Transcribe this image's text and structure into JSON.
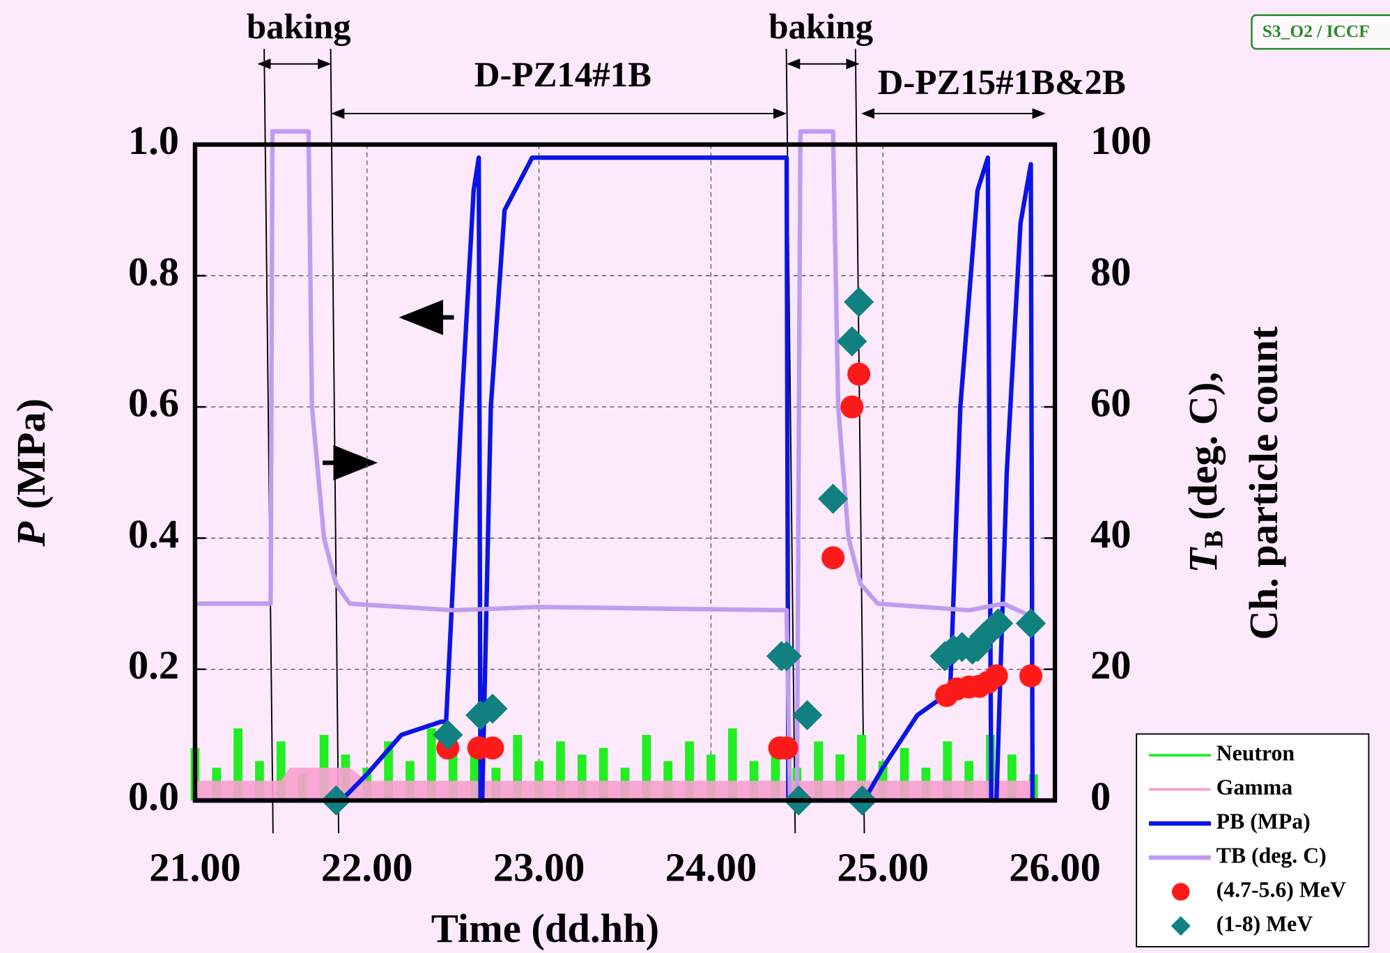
{
  "chart_data": {
    "type": "line",
    "badge": "S3_O2 / ICCF",
    "annotations": [
      "baking",
      "baking",
      "D-PZ14#1B",
      "D-PZ15#1B&2B"
    ],
    "xlabel": "Time  (dd.hh)",
    "ylabel_symbol": "P",
    "ylabel_unit": "(MPa)",
    "y2label_symbol": "T",
    "y2label_subscript": "B",
    "y2label_unit": " (deg. C),",
    "y2label_line2": "Ch. particle count",
    "xlim": [
      21,
      26
    ],
    "xticks": [
      {
        "value": 21,
        "label": "21.00"
      },
      {
        "value": 22,
        "label": "22.00"
      },
      {
        "value": 23,
        "label": "23.00"
      },
      {
        "value": 24,
        "label": "24.00"
      },
      {
        "value": 25,
        "label": "25.00"
      },
      {
        "value": 26,
        "label": "26.00"
      }
    ],
    "ylim": [
      0,
      1
    ],
    "yticks": [
      {
        "value": 0,
        "label": "0.0"
      },
      0.2,
      0.4,
      0.6,
      0.8,
      {
        "value": 1,
        "label": "1.0"
      }
    ],
    "y2lim": [
      0,
      100
    ],
    "y2ticks": [
      0,
      20,
      40,
      60,
      80,
      100
    ],
    "grid": true,
    "legend": "lower right outside",
    "series": [
      {
        "name": "Neutron",
        "kind": "spike",
        "color": "#22ee22",
        "axis": "y2",
        "x": [
          21.0,
          21.125,
          21.25,
          21.375,
          21.5,
          21.625,
          21.75,
          21.875,
          22.0,
          22.125,
          22.25,
          22.375,
          22.5,
          22.625,
          22.75,
          22.875,
          23.0,
          23.125,
          23.25,
          23.375,
          23.5,
          23.625,
          23.75,
          23.875,
          24.0,
          24.125,
          24.25,
          24.375,
          24.5,
          24.625,
          24.75,
          24.875,
          25.0,
          25.125,
          25.25,
          25.375,
          25.5,
          25.625,
          25.75,
          25.875
        ],
        "values": [
          8,
          5,
          11,
          6,
          9,
          4,
          10,
          7,
          5,
          9,
          6,
          11,
          7,
          8,
          5,
          10,
          6,
          9,
          7,
          8,
          5,
          10,
          6,
          9,
          7,
          11,
          6,
          8,
          5,
          9,
          7,
          10,
          6,
          8,
          5,
          9,
          6,
          10,
          7,
          4
        ]
      },
      {
        "name": "Gamma",
        "kind": "area",
        "color": "#f8a0d0",
        "axis": "y2",
        "x": [
          21.0,
          21.5,
          21.55,
          21.9,
          22.0,
          22.7,
          22.75,
          24.5,
          25.0,
          25.5,
          25.87
        ],
        "values": [
          3,
          3,
          5,
          5,
          3,
          3,
          3,
          3,
          3,
          3,
          3
        ]
      },
      {
        "name": "PB (MPa)",
        "kind": "line",
        "color": "#0a14e6",
        "axis": "y",
        "x": [
          21.0,
          21.85,
          22.0,
          22.2,
          22.43,
          22.46,
          22.55,
          22.62,
          22.65,
          22.66,
          22.67,
          22.72,
          22.8,
          22.96,
          24.44,
          24.45,
          24.5,
          24.89,
          25.0,
          25.2,
          25.36,
          25.39,
          25.45,
          25.55,
          25.61,
          25.63,
          25.66,
          25.72,
          25.8,
          25.86,
          25.87
        ],
        "values": [
          0,
          0,
          0.04,
          0.1,
          0.12,
          0.12,
          0.6,
          0.93,
          0.98,
          0,
          0,
          0.6,
          0.9,
          0.98,
          0.98,
          0,
          0,
          0,
          0.05,
          0.13,
          0.16,
          0.16,
          0.6,
          0.93,
          0.98,
          0,
          0,
          0.5,
          0.88,
          0.97,
          0
        ]
      },
      {
        "name": "TB (deg. C)",
        "kind": "line",
        "color": "#c09cf0",
        "axis": "y2",
        "x": [
          21.0,
          21.44,
          21.45,
          21.66,
          21.68,
          21.75,
          21.82,
          21.9,
          22.5,
          23.0,
          24.44,
          24.46,
          24.5,
          24.52,
          24.71,
          24.74,
          24.8,
          24.87,
          24.97,
          25.5,
          25.7,
          25.87
        ],
        "values": [
          30,
          30,
          102,
          102,
          60,
          40,
          33,
          30,
          29,
          29.5,
          29,
          0,
          0,
          102,
          102,
          60,
          40,
          33,
          30,
          29,
          30,
          28
        ]
      },
      {
        "name": "(4.7-5.6) MeV",
        "kind": "scatter",
        "marker": "circle",
        "color": "#ff1a1a",
        "axis": "y2",
        "x": [
          22.47,
          22.65,
          22.73,
          24.4,
          24.44,
          24.71,
          24.82,
          24.86,
          25.37,
          25.43,
          25.5,
          25.56,
          25.61,
          25.66,
          25.86
        ],
        "values": [
          8,
          8,
          8,
          8,
          8,
          37,
          60,
          65,
          16,
          17,
          17.3,
          17.4,
          18,
          19,
          19
        ]
      },
      {
        "name": "(1-8) MeV",
        "kind": "scatter",
        "marker": "diamond",
        "color": "#118080",
        "axis": "y2",
        "x": [
          21.82,
          22.47,
          22.66,
          22.73,
          24.41,
          24.44,
          24.51,
          24.56,
          24.71,
          24.82,
          24.86,
          24.88,
          25.36,
          25.41,
          25.46,
          25.52,
          25.55,
          25.59,
          25.63,
          25.67,
          25.86
        ],
        "values": [
          0,
          10,
          13,
          14,
          22,
          22,
          0,
          13,
          46,
          70,
          76,
          0,
          22,
          23,
          23.4,
          23,
          23.4,
          25,
          26,
          27,
          27
        ]
      }
    ]
  }
}
